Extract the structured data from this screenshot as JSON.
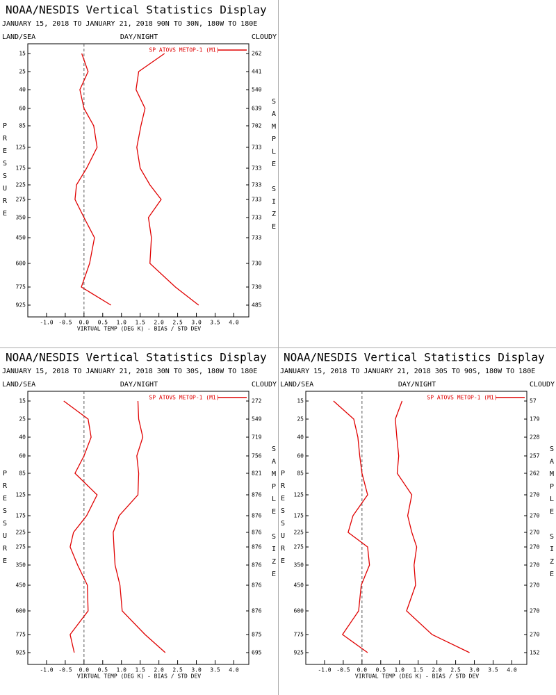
{
  "chart_data": [
    {
      "type": "line",
      "title": "NOAA/NESDIS Vertical Statistics Display",
      "subtitle": "JANUARY 15, 2018 TO JANUARY 21, 2018   90N TO 30N, 180W TO 180E",
      "header_left": "LAND/SEA",
      "header_center": "DAY/NIGHT",
      "header_right": "CLOUDY",
      "ylabel": "PRESSURE",
      "y2label": "SAMPLE SIZE",
      "xlabel": "VIRTUAL TEMP (DEG K) - BIAS / STD DEV",
      "categories": [
        15,
        25,
        40,
        60,
        85,
        125,
        175,
        225,
        275,
        350,
        450,
        600,
        775,
        925
      ],
      "sample_sizes": [
        262,
        441,
        540,
        639,
        702,
        733,
        733,
        733,
        733,
        733,
        733,
        730,
        730,
        485
      ],
      "series": [
        {
          "name": "SP ATOVS METOP-1 (M1)",
          "color": "#e00000",
          "values": [
            -0.06,
            0.11,
            -0.11,
            0,
            0.26,
            0.35,
            0.07,
            -0.2,
            -0.24,
            0,
            0.28,
            0.15,
            -0.07,
            0.72
          ]
        },
        {
          "color": "#e00000",
          "values": [
            2.15,
            1.46,
            1.39,
            1.63,
            1.52,
            1.41,
            1.5,
            1.76,
            2.06,
            1.72,
            1.8,
            1.76,
            2.44,
            3.06
          ]
        }
      ],
      "xlim": [
        -1.5,
        4.4
      ],
      "xticks": [
        {
          "value": -1,
          "label": "-1.0"
        },
        {
          "value": -0.5,
          "label": "-0.5"
        },
        {
          "value": 0,
          "label": "0.0"
        },
        0.5,
        {
          "value": 1,
          "label": "1.0"
        },
        1.5,
        {
          "value": 2,
          "label": "2.0"
        },
        2.5,
        {
          "value": 3,
          "label": "3.0"
        },
        3.5,
        {
          "value": 4,
          "label": "4.0"
        }
      ],
      "legend": "upper right"
    },
    {
      "type": "line",
      "title": "NOAA/NESDIS Vertical Statistics Display",
      "subtitle": "JANUARY 15, 2018 TO JANUARY 21, 2018   30N TO 30S, 180W TO 180E",
      "header_left": "LAND/SEA",
      "header_center": "DAY/NIGHT",
      "header_right": "CLOUDY",
      "ylabel": "PRESSURE",
      "y2label": "SAMPLE SIZE",
      "xlabel": "VIRTUAL TEMP (DEG K) - BIAS / STD DEV",
      "categories": [
        15,
        25,
        40,
        60,
        85,
        125,
        175,
        225,
        275,
        350,
        450,
        600,
        775,
        925
      ],
      "sample_sizes": [
        272,
        549,
        719,
        756,
        821,
        876,
        876,
        876,
        876,
        876,
        876,
        876,
        875,
        695
      ],
      "series": [
        {
          "name": "SP ATOVS METOP-1 (M1)",
          "color": "#e00000",
          "values": [
            -0.54,
            0.11,
            0.19,
            0,
            -0.24,
            0.35,
            0.07,
            -0.28,
            -0.37,
            -0.17,
            0.09,
            0.11,
            -0.37,
            -0.26
          ]
        },
        {
          "color": "#e00000",
          "values": [
            1.44,
            1.46,
            1.57,
            1.41,
            1.46,
            1.44,
            0.94,
            0.78,
            0.8,
            0.83,
            0.96,
            1.02,
            1.63,
            2.17
          ]
        }
      ],
      "xlim": [
        -1.5,
        4.4
      ],
      "xticks": [
        {
          "value": -1,
          "label": "-1.0"
        },
        {
          "value": -0.5,
          "label": "-0.5"
        },
        {
          "value": 0,
          "label": "0.0"
        },
        0.5,
        {
          "value": 1,
          "label": "1.0"
        },
        1.5,
        {
          "value": 2,
          "label": "2.0"
        },
        2.5,
        {
          "value": 3,
          "label": "3.0"
        },
        3.5,
        {
          "value": 4,
          "label": "4.0"
        }
      ],
      "legend": "upper right"
    },
    {
      "type": "line",
      "title": "NOAA/NESDIS Vertical Statistics Display",
      "subtitle": "JANUARY 15, 2018 TO JANUARY 21, 2018   30S TO 90S, 180W TO 180E",
      "header_left": "LAND/SEA",
      "header_center": "DAY/NIGHT",
      "header_right": "CLOUDY",
      "ylabel": "PRESSURE",
      "y2label": "SAMPLE SIZE",
      "xlabel": "VIRTUAL TEMP (DEG K) - BIAS / STD DEV",
      "categories": [
        15,
        25,
        40,
        60,
        85,
        125,
        175,
        225,
        275,
        350,
        450,
        600,
        775,
        925
      ],
      "sample_sizes": [
        57,
        179,
        228,
        257,
        262,
        270,
        270,
        270,
        270,
        270,
        270,
        270,
        270,
        152
      ],
      "series": [
        {
          "name": "SP ATOVS METOP-1 (M1)",
          "color": "#e00000",
          "values": [
            -0.76,
            -0.22,
            -0.11,
            -0.06,
            0,
            0.15,
            -0.24,
            -0.37,
            0.15,
            0.2,
            -0.02,
            -0.09,
            -0.52,
            0.15
          ]
        },
        {
          "color": "#e00000",
          "values": [
            1.07,
            0.89,
            0.93,
            0.98,
            0.94,
            1.33,
            1.22,
            1.33,
            1.46,
            1.39,
            1.43,
            1.19,
            1.87,
            2.87
          ]
        }
      ],
      "xlim": [
        -1.5,
        4.4
      ],
      "xticks": [
        {
          "value": -1,
          "label": "-1.0"
        },
        {
          "value": -0.5,
          "label": "-0.5"
        },
        {
          "value": 0,
          "label": "0.0"
        },
        0.5,
        {
          "value": 1,
          "label": "1.0"
        },
        1.5,
        {
          "value": 2,
          "label": "2.0"
        },
        2.5,
        {
          "value": 3,
          "label": "3.0"
        },
        3.5,
        {
          "value": 4,
          "label": "4.0"
        }
      ],
      "legend": "upper right"
    }
  ]
}
